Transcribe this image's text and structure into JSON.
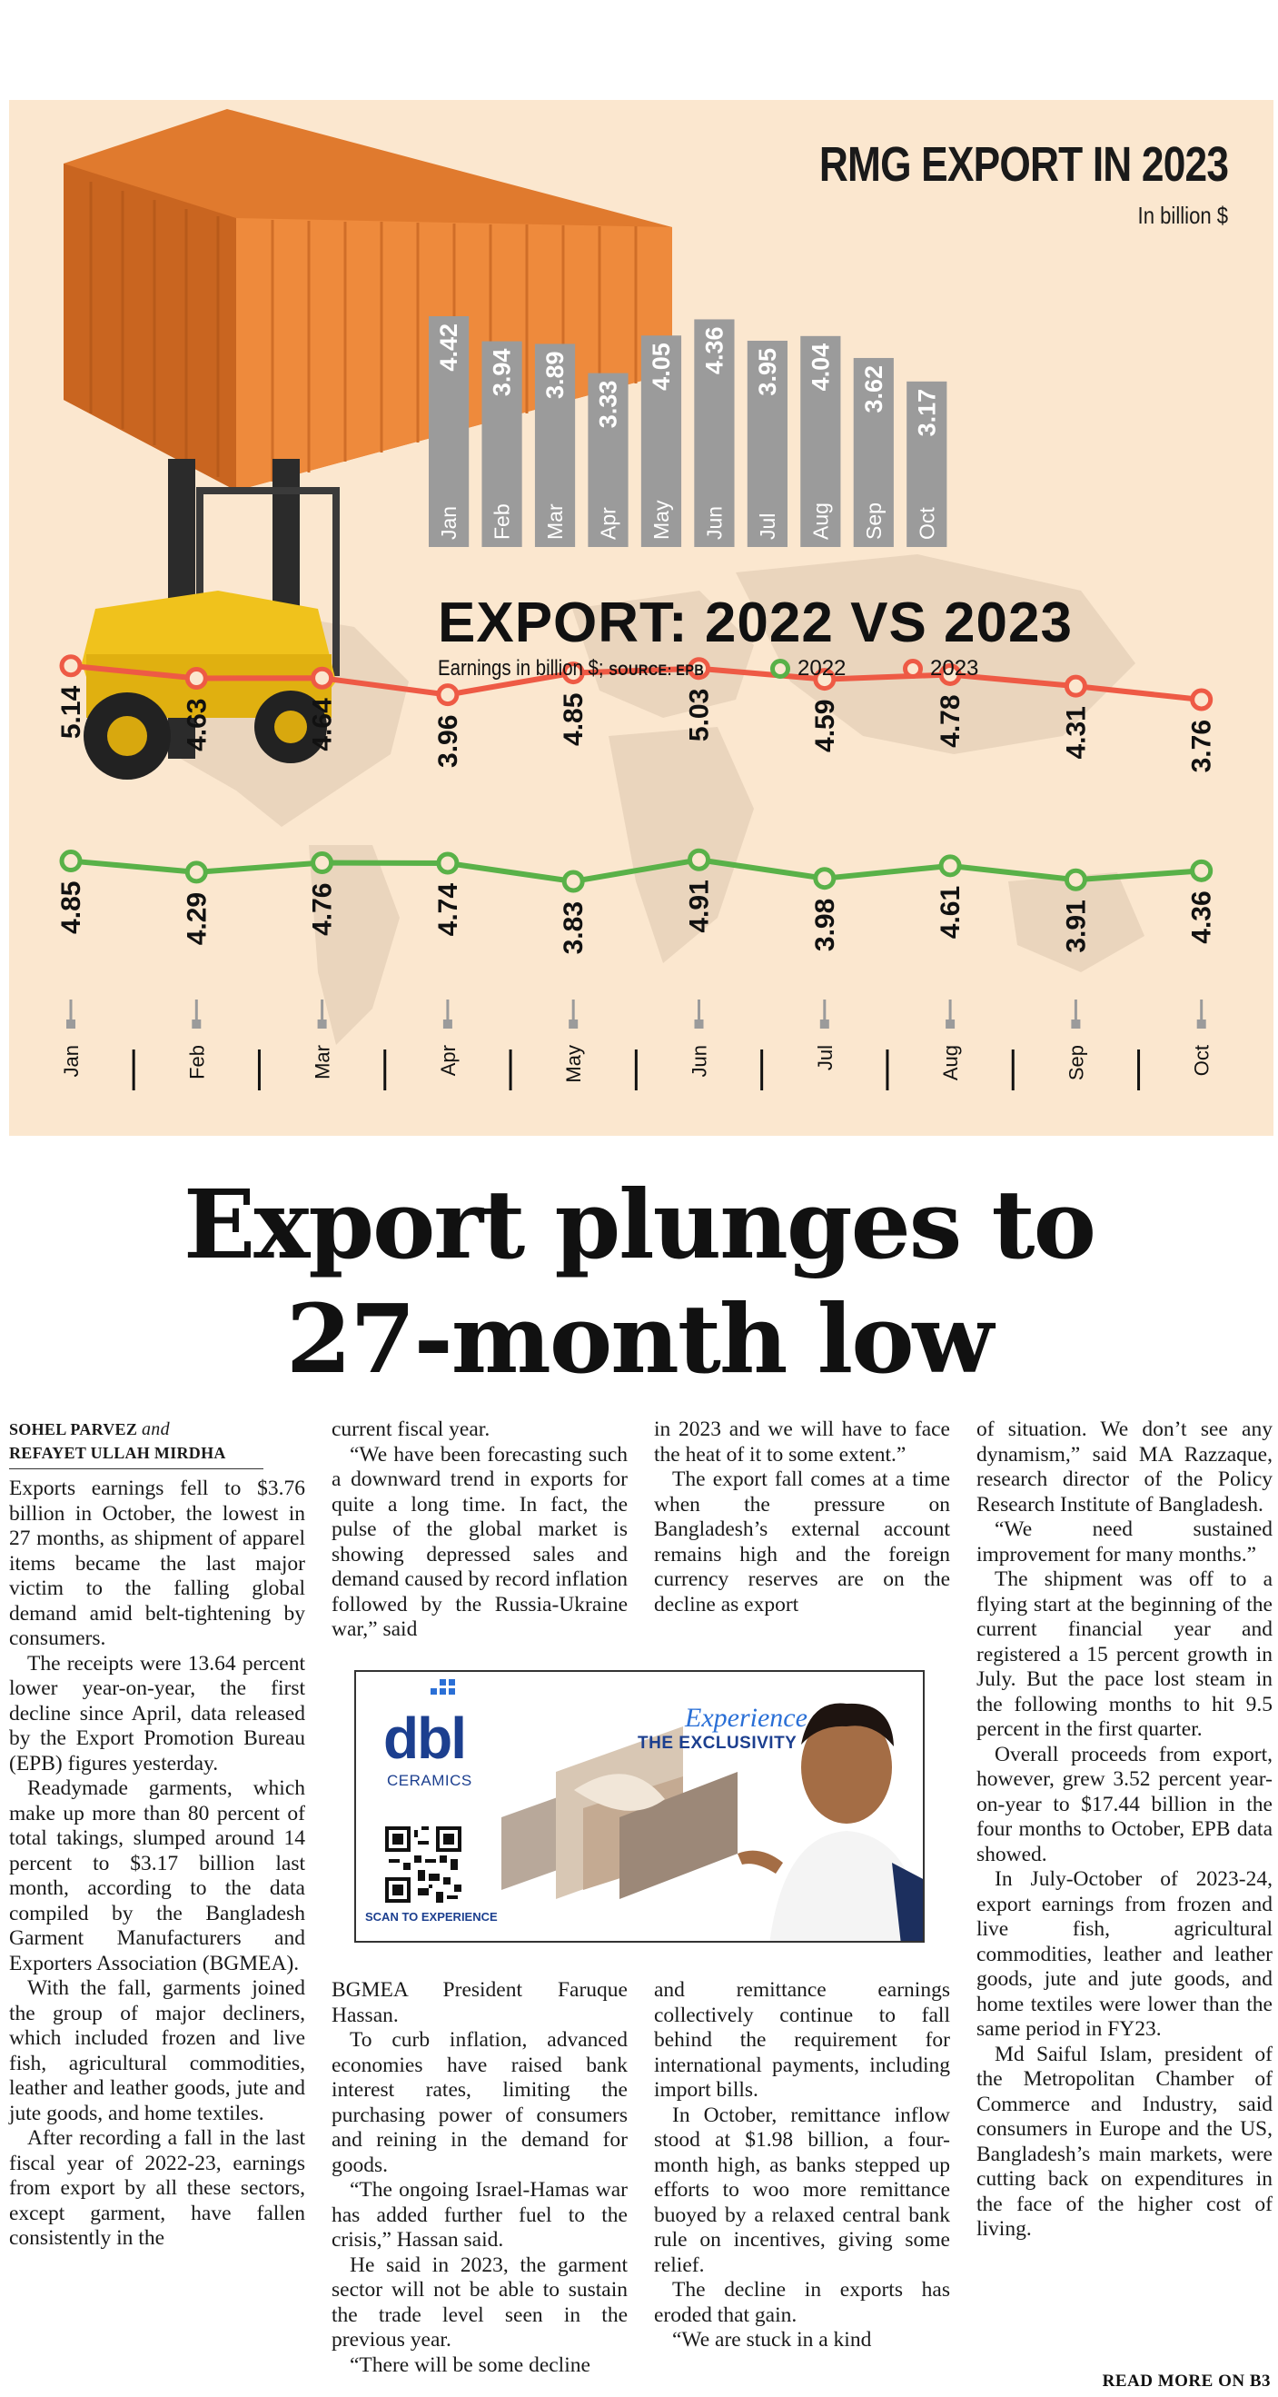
{
  "rmg": {
    "title": "RMG EXPORT IN 2023",
    "unit": "In billion $"
  },
  "compare": {
    "title": "EXPORT: 2022 VS 2023",
    "subtitle": "Earnings in billion $; ",
    "source": "SOURCE: EPB",
    "legend_2022": "2022",
    "legend_2023": "2023"
  },
  "colors": {
    "bar": "#9b9b9b",
    "line_2022": "#59b148",
    "line_2023": "#ee5a45",
    "panel_bg": "#fbe7cf"
  },
  "chart_data": [
    {
      "type": "bar",
      "title": "RMG EXPORT IN 2023",
      "ylabel": "In billion $",
      "categories": [
        "Jan",
        "Feb",
        "Mar",
        "Apr",
        "May",
        "Jun",
        "Jul",
        "Aug",
        "Sep",
        "Oct"
      ],
      "values": [
        4.42,
        3.94,
        3.89,
        3.33,
        4.05,
        4.36,
        3.95,
        4.04,
        3.62,
        3.17
      ]
    },
    {
      "type": "line",
      "title": "EXPORT: 2022 VS 2023",
      "ylabel": "Earnings in billion $",
      "categories": [
        "Jan",
        "Feb",
        "Mar",
        "Apr",
        "May",
        "Jun",
        "Jul",
        "Aug",
        "Sep",
        "Oct"
      ],
      "series": [
        {
          "name": "2022",
          "values": [
            4.85,
            4.29,
            4.76,
            4.74,
            3.83,
            4.91,
            3.98,
            4.61,
            3.91,
            4.36
          ]
        },
        {
          "name": "2023",
          "values": [
            5.14,
            4.63,
            4.64,
            3.96,
            4.85,
            5.03,
            4.59,
            4.78,
            4.31,
            3.76
          ]
        }
      ]
    }
  ],
  "headline": {
    "line1": "Export plunges to",
    "line2": "27-month low"
  },
  "byline": {
    "author1": "SOHEL PARVEZ",
    "and": "and",
    "author2": "REFAYET ULLAH MIRDHA"
  },
  "col1": [
    "Exports earnings fell to $3.76 billion in October, the lowest in 27 months, as shipment of apparel items became the last major victim to the falling global demand amid belt-tightening by consumers.",
    "The receipts were 13.64 percent lower year-on-year, the first decline since April, data released by the Export Promotion Bureau (EPB) figures yesterday.",
    "Readymade garments, which make up more than 80 percent of total takings, slumped around 14 percent to $3.17 billion last month, according to the data compiled by the Bangladesh Garment Manufacturers and Exporters Association (BGMEA).",
    "With the fall, garments joined the group of major decliners, which included frozen and live fish, agricultural commodities, leather and leather goods, jute and jute goods, and home textiles.",
    "After recording a fall in the last fiscal year of 2022-23, earnings from export by all these sectors, except garment, have fallen consistently in the"
  ],
  "col2_top": [
    "current fiscal year.",
    "“We have been forecasting such a downward trend in exports for quite a long time. In fact, the pulse of the global market is showing depressed sales and demand caused by record inflation followed by the Russia-Ukraine war,” said"
  ],
  "col2_bottom": [
    "BGMEA President Faruque Hassan.",
    "To curb inflation, advanced economies have raised bank interest rates, limiting the purchasing power of consumers and reining in the demand for goods.",
    "“The ongoing Israel-Hamas war has added further fuel to the crisis,” Hassan said.",
    "He said in 2023, the garment sector will not be able to sustain the trade level seen in the previous year.",
    "“There will be some decline"
  ],
  "col3_top": [
    "in 2023 and we will have to face the heat of it to some extent.”",
    "The export fall comes at a time when the pressure on Bangladesh’s external account remains high and the foreign currency reserves are on the decline as export"
  ],
  "col3_bottom": [
    "and remittance earnings collectively continue to fall behind the requirement for international payments, including import bills.",
    "In October, remittance inflow stood at $1.98 billion, a four-month high, as banks stepped up efforts to woo more remittance buoyed by a relaxed central bank rule on incentives, giving some relief.",
    "The decline in exports has eroded that gain.",
    "“We are stuck in a kind"
  ],
  "col4": [
    "of situation. We don’t see any dynamism,” said MA Razzaque, research director of the Policy Research Institute of Bangladesh.",
    "“We need sustained improvement for many months.”",
    "The shipment was off to a flying start at the beginning of the current financial year and registered a 15 percent growth in July. But the pace lost steam in the following months to hit 9.5 percent in the first quarter.",
    "Overall proceeds from export, however, grew 3.52 percent year-on-year to $17.44 billion in the four months to October, EPB data showed.",
    "In July-October of 2023-24, export earnings from frozen and live fish, agricultural commodities, leather and leather goods, jute and jute goods, and home textiles were lower than the same period in FY23.",
    "Md Saiful Islam, president of the Metropolitan Chamber of Commerce and Industry, said consumers in Europe and the US, Bangladesh’s main markets, were cutting back on expenditures in the face of the higher cost of living."
  ],
  "ad": {
    "logo": "dbl",
    "logo_sub": "CERAMICS",
    "tagline1": "Experience",
    "tagline2": "THE EXCLUSIVITY",
    "scan": "SCAN TO EXPERIENCE"
  },
  "readmore": "READ MORE ON B3"
}
